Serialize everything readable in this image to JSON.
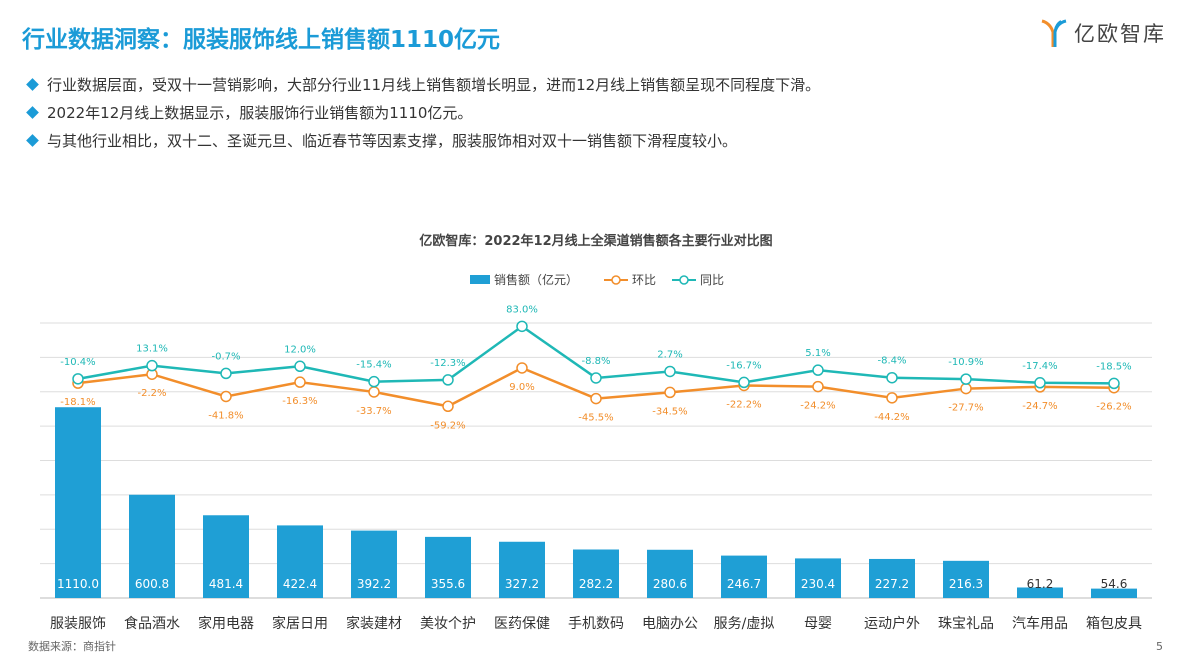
{
  "header": {
    "title": "行业数据洞察：服装服饰线上销售额1110亿元",
    "logo_text": "亿欧智库"
  },
  "bullets": [
    "行业数据层面，受双十一营销影响，大部分行业11月线上销售额增长明显，进而12月线上销售额呈现不同程度下滑。",
    "2022年12月线上数据显示，服装服饰行业销售额为1110亿元。",
    "与其他行业相比，双十二、圣诞元旦、临近春节等因素支撑，服装服饰相对双十一销售额下滑程度较小。"
  ],
  "footer": {
    "source": "数据来源：商指针",
    "page": "5"
  },
  "colors": {
    "accent": "#1b9bd7",
    "bar": "#1f9fd5",
    "mom": "#f28e2b",
    "yoy": "#1fb8b6"
  },
  "chart_data": {
    "type": "bar+line",
    "title": "亿欧智库：2022年12月线上全渠道销售额各主要行业对比图",
    "legend_position": "top",
    "grid": true,
    "categories": [
      "服装服饰",
      "食品酒水",
      "家用电器",
      "家居日用",
      "家装建材",
      "美妆个护",
      "医药保健",
      "手机数码",
      "电脑办公",
      "服务/虚拟",
      "母婴",
      "运动户外",
      "珠宝礼品",
      "汽车用品",
      "箱包皮具"
    ],
    "ylim": [
      0,
      1600
    ],
    "series": [
      {
        "name": "销售额（亿元）",
        "type": "bar",
        "values": [
          1110.0,
          600.8,
          481.4,
          422.4,
          392.2,
          355.6,
          327.2,
          282.2,
          280.6,
          246.7,
          230.4,
          227.2,
          216.3,
          61.2,
          54.6
        ]
      },
      {
        "name": "环比",
        "type": "line",
        "unit": "%",
        "values": [
          -18.1,
          -2.2,
          -41.8,
          -16.3,
          -33.7,
          -59.2,
          9.0,
          -45.5,
          -34.5,
          -22.2,
          -24.2,
          -44.2,
          -27.7,
          -24.7,
          -26.2
        ]
      },
      {
        "name": "同比",
        "type": "line",
        "unit": "%",
        "values": [
          -10.4,
          13.1,
          -0.7,
          12.0,
          -15.4,
          -12.3,
          83.0,
          -8.8,
          2.7,
          -16.7,
          5.1,
          -8.4,
          -10.9,
          -17.4,
          -18.5
        ]
      }
    ]
  }
}
